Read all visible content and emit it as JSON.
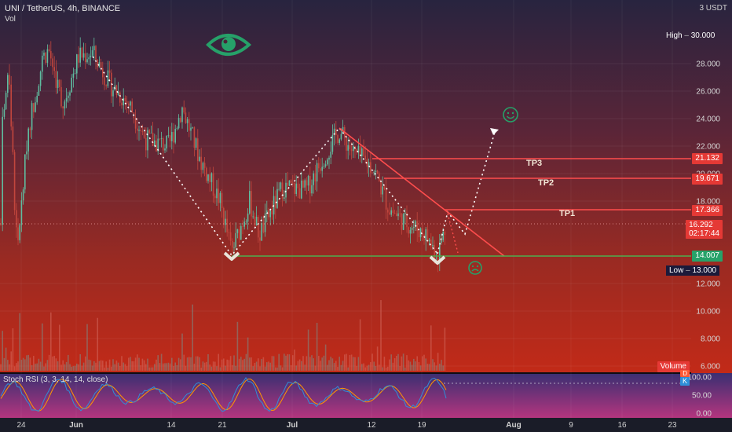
{
  "header": {
    "symbol": "UNI / TetherUS, 4h, BINANCE",
    "volume_label": "Vol",
    "currency": "3 USDT"
  },
  "price_axis": {
    "ticks": [
      "28.000",
      "26.000",
      "24.000",
      "22.000",
      "20.000",
      "18.000",
      "12.000",
      "10.000",
      "8.000",
      "6.000"
    ],
    "high_label": "High",
    "high_value": "30.000",
    "low_label": "Low",
    "low_value": "13.000"
  },
  "levels": {
    "tp3_price": "21.132",
    "tp2_price": "19.671",
    "tp1_price": "17.366",
    "current_price": "16.292",
    "countdown": "02:17:44",
    "support_price": "14.007"
  },
  "annotations": {
    "tp3": "TP3",
    "tp2": "TP2",
    "tp1": "TP1"
  },
  "volume_badge": "Volume",
  "rsi": {
    "label": "Stoch RSI (3, 3, 14, 14, close)",
    "d_badge": "D",
    "k_badge": "K",
    "ticks": [
      "100.00",
      "50.00",
      "0.00"
    ]
  },
  "time_axis": [
    "24",
    "Jun",
    "14",
    "21",
    "Jul",
    "12",
    "19",
    "Aug",
    "9",
    "16",
    "23"
  ],
  "colors": {
    "level_line": "#ff4d4d",
    "support_line": "#4caf50",
    "annotation_green": "#26a169",
    "rsi_k": "#2f8fd8",
    "rsi_d": "#ff9800"
  }
}
